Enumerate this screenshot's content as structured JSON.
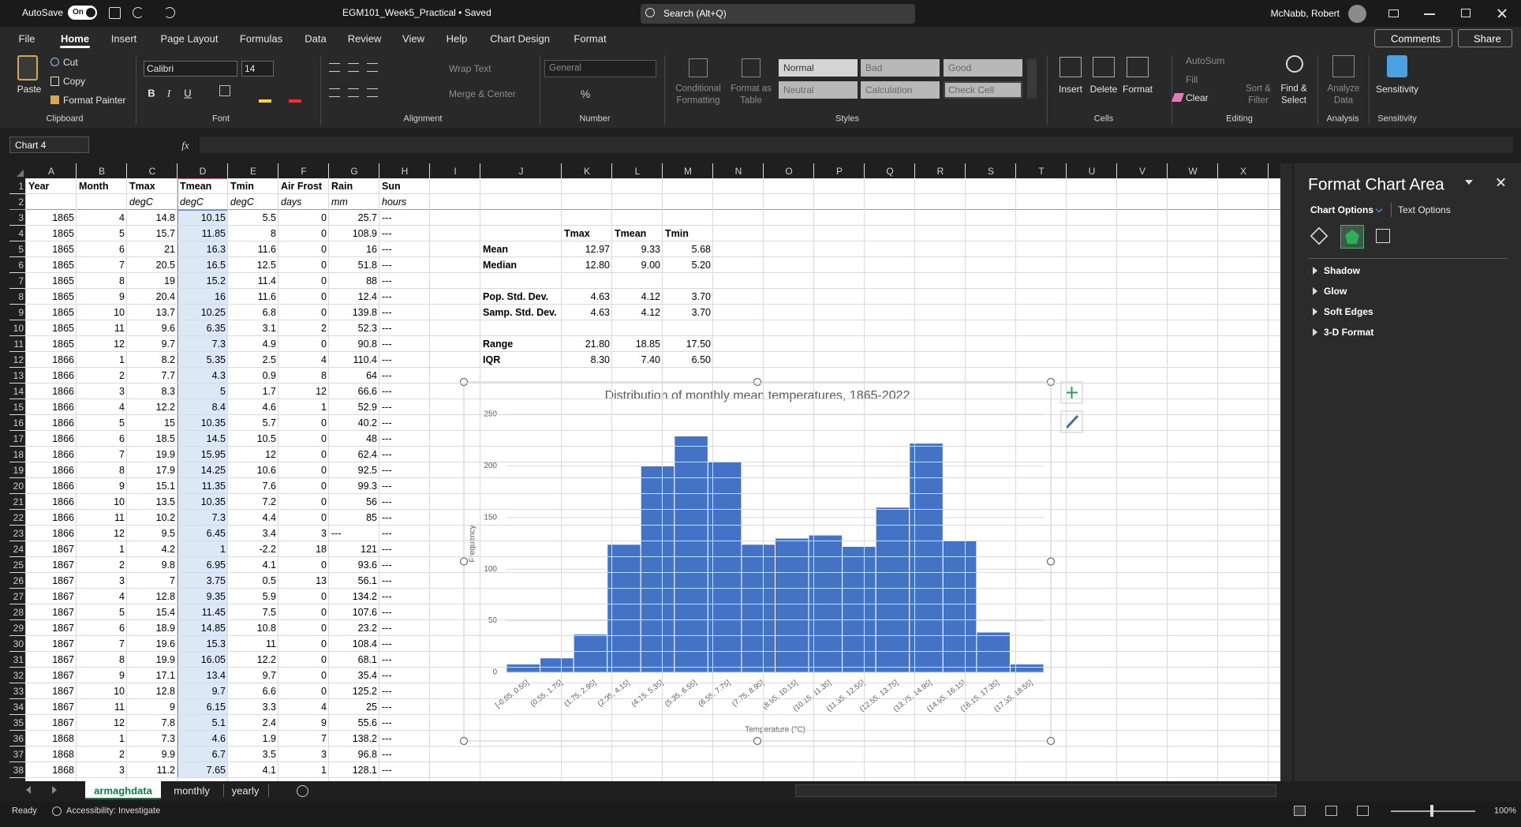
{
  "title_bar": {
    "autosave": "AutoSave",
    "toggle": "On",
    "file": "EGM101_Week5_Practical • Saved",
    "search": "Search (Alt+Q)",
    "user": "McNabb, Robert"
  },
  "ribbon": {
    "tabs": [
      "File",
      "Home",
      "Insert",
      "Page Layout",
      "Formulas",
      "Data",
      "Review",
      "View",
      "Help",
      "Chart Design",
      "Format"
    ],
    "comments": "Comments",
    "share": "Share",
    "clipboard": {
      "label": "Clipboard",
      "paste": "Paste",
      "cut": "Cut",
      "copy": "Copy",
      "format_painter": "Format Painter"
    },
    "font": {
      "label": "Font",
      "name": "Calibri",
      "size": "14",
      "styles": [
        "B",
        "I",
        "U"
      ]
    },
    "alignment": {
      "label": "Alignment",
      "wrap_text": "Wrap Text",
      "merge_center": "Merge & Center"
    },
    "number": {
      "label": "Number",
      "format": "General",
      "percent": "%"
    },
    "styles": {
      "label": "Styles",
      "conditional_formatting": [
        "Conditional",
        "Formatting"
      ],
      "format_as_table": [
        "Format as",
        "Table"
      ],
      "cells": [
        "Normal",
        "Bad",
        "Good",
        "Neutral",
        "Calculation",
        "Check Cell"
      ]
    },
    "cells": {
      "label": "Cells",
      "insert": "Insert",
      "delete": "Delete",
      "format": "Format"
    },
    "editing": {
      "label": "Editing",
      "autosum": "AutoSum",
      "fill": "Fill",
      "clear": "Clear",
      "sort_filter": [
        "Sort &",
        "Filter"
      ],
      "find_select": [
        "Find &",
        "Select"
      ]
    },
    "analysis": {
      "label": "Analysis",
      "analyze_data": [
        "Analyze",
        "Data"
      ]
    },
    "sensitivity": {
      "label": "Sensitivity",
      "button": "Sensitivity"
    }
  },
  "formula_bar": {
    "name_box": "Chart 4",
    "fx": "fx"
  },
  "sheet": {
    "columns": [
      "A",
      "B",
      "C",
      "D",
      "E",
      "F",
      "G",
      "H",
      "I",
      "J",
      "K",
      "L",
      "M",
      "N",
      "O",
      "P",
      "Q",
      "R",
      "S",
      "T",
      "U",
      "V",
      "W",
      "X"
    ],
    "row_numbers": [
      1,
      2,
      3,
      4,
      5,
      6,
      7,
      8,
      9,
      10,
      11,
      12,
      13,
      14,
      15,
      16,
      17,
      18,
      19,
      20,
      21,
      22,
      23,
      24,
      25,
      26,
      27,
      28,
      29,
      30,
      31,
      32,
      33,
      34,
      35,
      36,
      37,
      38
    ],
    "rows": [
      [
        "Year",
        "Month",
        "Tmax",
        "Tmean",
        "Tmin",
        "Air Frost",
        "Rain",
        "Sun"
      ],
      [
        null,
        null,
        "degC",
        "degC",
        "degC",
        "days",
        "mm",
        "hours"
      ],
      [
        "1865",
        "4",
        "14.8",
        "10.15",
        "5.5",
        "0",
        "25.7",
        "---"
      ],
      [
        "1865",
        "5",
        "15.7",
        "11.85",
        "8",
        "0",
        "108.9",
        "---"
      ],
      [
        "1865",
        "6",
        "21",
        "16.3",
        "11.6",
        "0",
        "16",
        "---"
      ],
      [
        "1865",
        "7",
        "20.5",
        "16.5",
        "12.5",
        "0",
        "51.8",
        "---"
      ],
      [
        "1865",
        "8",
        "19",
        "15.2",
        "11.4",
        "0",
        "88",
        "---"
      ],
      [
        "1865",
        "9",
        "20.4",
        "16",
        "11.6",
        "0",
        "12.4",
        "---"
      ],
      [
        "1865",
        "10",
        "13.7",
        "10.25",
        "6.8",
        "0",
        "139.8",
        "---"
      ],
      [
        "1865",
        "11",
        "9.6",
        "6.35",
        "3.1",
        "2",
        "52.3",
        "---"
      ],
      [
        "1865",
        "12",
        "9.7",
        "7.3",
        "4.9",
        "0",
        "90.8",
        "---"
      ],
      [
        "1866",
        "1",
        "8.2",
        "5.35",
        "2.5",
        "4",
        "110.4",
        "---"
      ],
      [
        "1866",
        "2",
        "7.7",
        "4.3",
        "0.9",
        "8",
        "64",
        "---"
      ],
      [
        "1866",
        "3",
        "8.3",
        "5",
        "1.7",
        "12",
        "66.6",
        "---"
      ],
      [
        "1866",
        "4",
        "12.2",
        "8.4",
        "4.6",
        "1",
        "52.9",
        "---"
      ],
      [
        "1866",
        "5",
        "15",
        "10.35",
        "5.7",
        "0",
        "40.2",
        "---"
      ],
      [
        "1866",
        "6",
        "18.5",
        "14.5",
        "10.5",
        "0",
        "48",
        "---"
      ],
      [
        "1866",
        "7",
        "19.9",
        "15.95",
        "12",
        "0",
        "62.4",
        "---"
      ],
      [
        "1866",
        "8",
        "17.9",
        "14.25",
        "10.6",
        "0",
        "92.5",
        "---"
      ],
      [
        "1866",
        "9",
        "15.1",
        "11.35",
        "7.6",
        "0",
        "99.3",
        "---"
      ],
      [
        "1866",
        "10",
        "13.5",
        "10.35",
        "7.2",
        "0",
        "56",
        "---"
      ],
      [
        "1866",
        "11",
        "10.2",
        "7.3",
        "4.4",
        "0",
        "85",
        "---"
      ],
      [
        "1866",
        "12",
        "9.5",
        "6.45",
        "3.4",
        "3",
        "---",
        "---"
      ],
      [
        "1867",
        "1",
        "4.2",
        "1",
        "-2.2",
        "18",
        "121",
        "---"
      ],
      [
        "1867",
        "2",
        "9.8",
        "6.95",
        "4.1",
        "0",
        "93.6",
        "---"
      ],
      [
        "1867",
        "3",
        "7",
        "3.75",
        "0.5",
        "13",
        "56.1",
        "---"
      ],
      [
        "1867",
        "4",
        "12.8",
        "9.35",
        "5.9",
        "0",
        "134.2",
        "---"
      ],
      [
        "1867",
        "5",
        "15.4",
        "11.45",
        "7.5",
        "0",
        "107.6",
        "---"
      ],
      [
        "1867",
        "6",
        "18.9",
        "14.85",
        "10.8",
        "0",
        "23.2",
        "---"
      ],
      [
        "1867",
        "7",
        "19.6",
        "15.3",
        "11",
        "0",
        "108.4",
        "---"
      ],
      [
        "1867",
        "8",
        "19.9",
        "16.05",
        "12.2",
        "0",
        "68.1",
        "---"
      ],
      [
        "1867",
        "9",
        "17.1",
        "13.4",
        "9.7",
        "0",
        "35.4",
        "---"
      ],
      [
        "1867",
        "10",
        "12.8",
        "9.7",
        "6.6",
        "0",
        "125.2",
        "---"
      ],
      [
        "1867",
        "11",
        "9",
        "6.15",
        "3.3",
        "4",
        "25",
        "---"
      ],
      [
        "1867",
        "12",
        "7.8",
        "5.1",
        "2.4",
        "9",
        "55.6",
        "---"
      ],
      [
        "1868",
        "1",
        "7.3",
        "4.6",
        "1.9",
        "7",
        "138.2",
        "---"
      ],
      [
        "1868",
        "2",
        "9.9",
        "6.7",
        "3.5",
        "3",
        "96.8",
        "---"
      ],
      [
        "1868",
        "3",
        "11.2",
        "7.65",
        "4.1",
        "1",
        "128.1",
        "---"
      ]
    ]
  },
  "stats": {
    "header": [
      "Tmax",
      "Tmean",
      "Tmin"
    ],
    "rows": [
      {
        "label": "Mean",
        "values": [
          "12.97",
          "9.33",
          "5.68"
        ]
      },
      {
        "label": "Median",
        "values": [
          "12.80",
          "9.00",
          "5.20"
        ]
      },
      {
        "label": "Pop. Std. Dev.",
        "values": [
          "4.63",
          "4.12",
          "3.70"
        ]
      },
      {
        "label": "Samp. Std. Dev.",
        "values": [
          "4.63",
          "4.12",
          "3.70"
        ]
      },
      {
        "label": "Range",
        "values": [
          "21.80",
          "18.85",
          "17.50"
        ]
      },
      {
        "label": "IQR",
        "values": [
          "8.30",
          "7.40",
          "6.50"
        ]
      }
    ]
  },
  "chart_data": {
    "type": "bar",
    "title": "Distribution of monthly mean temperatures, 1865-2022",
    "x_label": "Temperature (°C)",
    "y_label": "Frequency",
    "categories": [
      "[-0.65, 0.55]",
      "(0.55, 1.75]",
      "(1.75, 2.95]",
      "(2.95, 4.15]",
      "(4.15, 5.35]",
      "(5.35, 6.55]",
      "(6.55, 7.75]",
      "(7.75, 8.95]",
      "(8.95, 10.15]",
      "(10.15, 11.35]",
      "(11.35, 12.55]",
      "(12.55, 13.75]",
      "(13.75, 14.95]",
      "(14.95, 16.15]",
      "(16.15, 17.35]",
      "(17.35, 18.55]"
    ],
    "values": [
      8,
      14,
      37,
      124,
      200,
      229,
      204,
      124,
      130,
      133,
      122,
      160,
      222,
      128,
      39,
      8
    ],
    "color": "#4472c4",
    "ylim": [
      0,
      250
    ],
    "yticks": [
      0,
      50,
      100,
      150,
      200,
      250
    ],
    "grid": true
  },
  "format_pane": {
    "title": "Format Chart Area",
    "tabs": [
      "Chart Options",
      "Text Options"
    ],
    "sections": [
      "Shadow",
      "Glow",
      "Soft Edges",
      "3-D Format"
    ]
  },
  "sheet_tabs": [
    "armaghdata",
    "monthly",
    "yearly"
  ],
  "status": {
    "ready": "Ready",
    "accessibility": "Accessibility: Investigate",
    "zoom": "100%"
  }
}
